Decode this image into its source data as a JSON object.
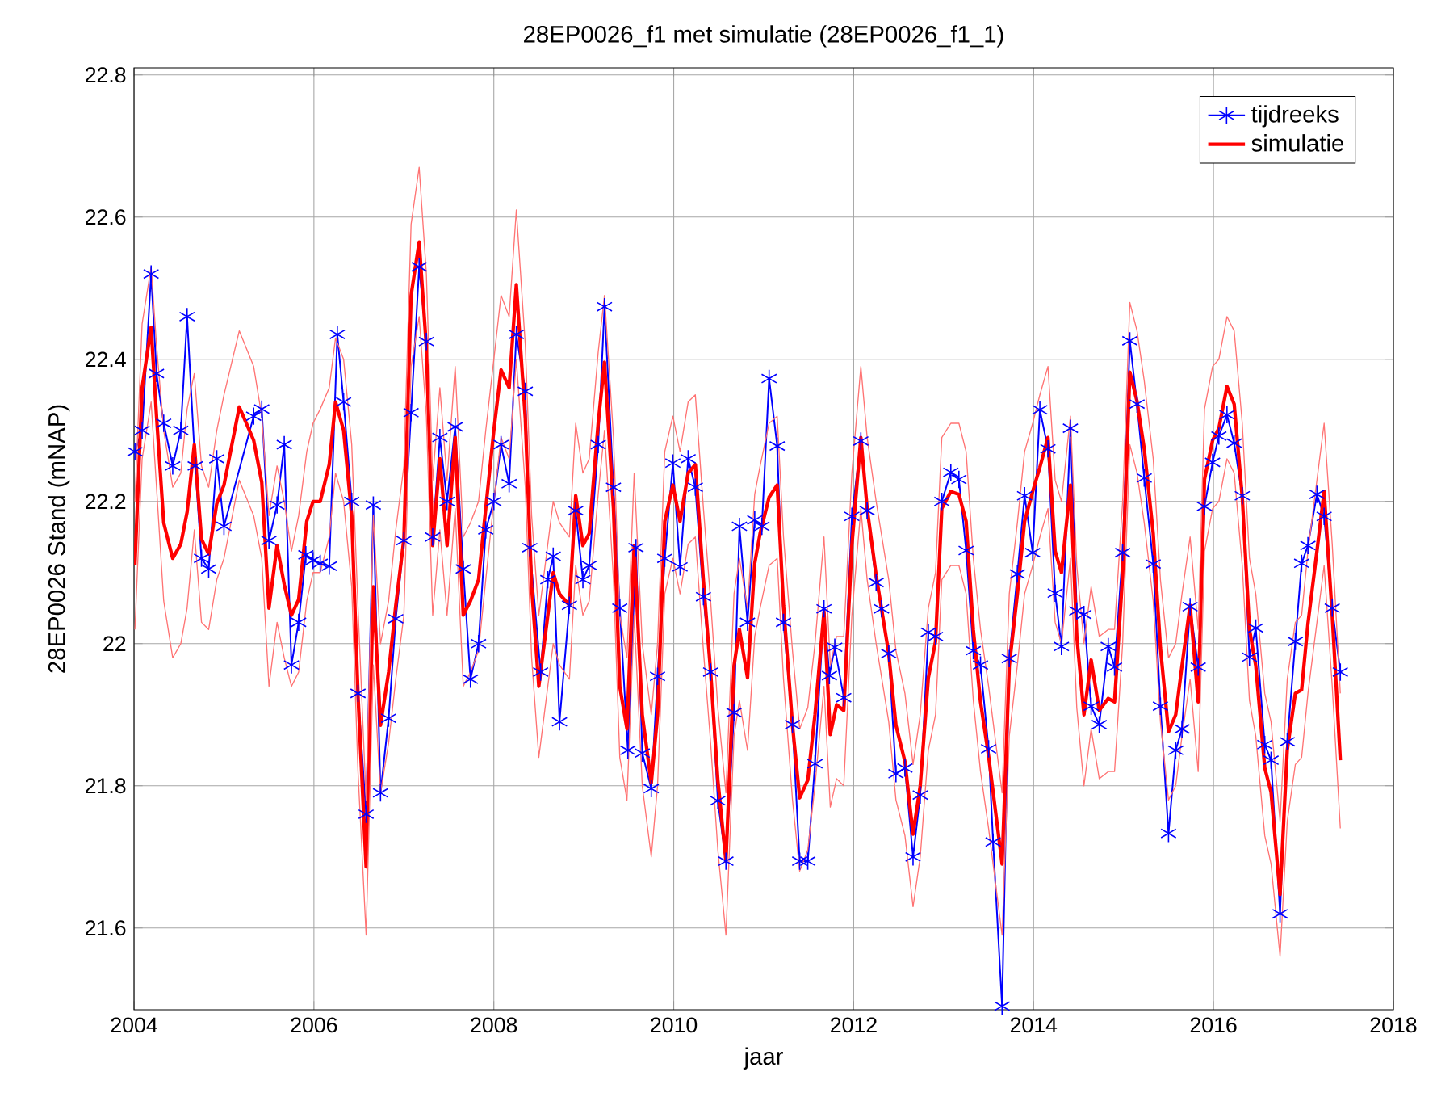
{
  "chart_data": {
    "type": "line",
    "title": "28EP0026_f1 met simulatie (28EP0026_f1_1)",
    "xlabel": "jaar",
    "ylabel": "28EP0026 Stand (mNAP)",
    "xlim": [
      2004,
      2018
    ],
    "ylim": [
      21.485,
      22.81
    ],
    "xticks": [
      2004,
      2006,
      2008,
      2010,
      2012,
      2014,
      2016,
      2018
    ],
    "yticks": [
      21.6,
      21.8,
      22,
      22.2,
      22.4,
      22.6,
      22.8
    ],
    "grid": true,
    "legend": "top right",
    "x": [
      2004.01,
      2004.09,
      2004.19,
      2004.25,
      2004.33,
      2004.43,
      2004.52,
      2004.59,
      2004.67,
      2004.75,
      2004.83,
      2004.92,
      2005.0,
      2005.17,
      2005.33,
      2005.42,
      2005.5,
      2005.59,
      2005.67,
      2005.75,
      2005.83,
      2005.92,
      2005.99,
      2006.07,
      2006.17,
      2006.24,
      2006.33,
      2006.42,
      2006.49,
      2006.58,
      2006.66,
      2006.74,
      2006.83,
      2006.91,
      2007.0,
      2007.08,
      2007.17,
      2007.25,
      2007.32,
      2007.4,
      2007.48,
      2007.57,
      2007.66,
      2007.74,
      2007.83,
      2007.91,
      2008.0,
      2008.08,
      2008.17,
      2008.25,
      2008.35,
      2008.42,
      2008.5,
      2008.59,
      2008.66,
      2008.73,
      2008.84,
      2008.91,
      2008.99,
      2009.06,
      2009.16,
      2009.23,
      2009.33,
      2009.4,
      2009.48,
      2009.56,
      2009.65,
      2009.75,
      2009.82,
      2009.9,
      2009.99,
      2010.07,
      2010.16,
      2010.24,
      2010.33,
      2010.41,
      2010.49,
      2010.58,
      2010.67,
      2010.73,
      2010.82,
      2010.9,
      2010.96,
      2011.06,
      2011.15,
      2011.22,
      2011.32,
      2011.4,
      2011.49,
      2011.57,
      2011.67,
      2011.74,
      2011.81,
      2011.89,
      2011.98,
      2012.08,
      2012.15,
      2012.25,
      2012.39,
      2012.47,
      2012.57,
      2012.66,
      2012.74,
      2012.83,
      2012.91,
      2012.98,
      2013.08,
      2013.17,
      2013.25,
      2013.33,
      2013.41,
      2013.5,
      2013.65,
      2013.73,
      2013.82,
      2013.9,
      2013.99,
      2014.07,
      2014.16,
      2014.24,
      2014.31,
      2014.41,
      2014.48,
      2014.56,
      2014.64,
      2014.73,
      2014.83,
      2014.9,
      2014.99,
      2015.07,
      2015.15,
      2015.23,
      2015.33,
      2015.41,
      2015.5,
      2015.58,
      2015.65,
      2015.74,
      2015.83,
      2015.9,
      2015.99,
      2016.06,
      2016.15,
      2016.23,
      2016.32,
      2016.4,
      2016.47,
      2016.57,
      2016.64,
      2016.74,
      2016.82,
      2016.91,
      2016.98,
      2017.05,
      2017.15,
      2017.23,
      2017.32,
      2017.41
    ],
    "series": [
      {
        "name": "tijdreeks",
        "color": "#0000ff",
        "marker": "cross",
        "line_style": "solid",
        "x": [
          2004.01,
          2004.09,
          2004.19,
          2004.25,
          2004.33,
          2004.43,
          2004.52,
          2004.59,
          2004.68,
          2004.75,
          2004.83,
          2004.92,
          2005.0,
          2005.33,
          2005.42,
          2005.5,
          2005.59,
          2005.67,
          2005.75,
          2005.83,
          2005.91,
          2005.99,
          2006.07,
          2006.17,
          2006.26,
          2006.33,
          2006.42,
          2006.49,
          2006.58,
          2006.66,
          2006.74,
          2006.83,
          2006.91,
          2007.0,
          2007.08,
          2007.17,
          2007.25,
          2007.32,
          2007.4,
          2007.48,
          2007.57,
          2007.66,
          2007.74,
          2007.83,
          2007.91,
          2008.0,
          2008.08,
          2008.17,
          2008.25,
          2008.35,
          2008.4,
          2008.52,
          2008.6,
          2008.66,
          2008.73,
          2008.84,
          2008.91,
          2008.99,
          2009.06,
          2009.16,
          2009.23,
          2009.33,
          2009.4,
          2009.49,
          2009.58,
          2009.65,
          2009.75,
          2009.82,
          2009.9,
          2009.99,
          2010.07,
          2010.16,
          2010.24,
          2010.33,
          2010.41,
          2010.49,
          2010.58,
          2010.67,
          2010.73,
          2010.82,
          2010.9,
          2010.98,
          2011.06,
          2011.15,
          2011.22,
          2011.32,
          2011.4,
          2011.49,
          2011.57,
          2011.67,
          2011.73,
          2011.79,
          2011.89,
          2011.98,
          2012.08,
          2012.15,
          2012.25,
          2012.31,
          2012.39,
          2012.47,
          2012.57,
          2012.66,
          2012.74,
          2012.83,
          2012.91,
          2012.98,
          2013.08,
          2013.17,
          2013.25,
          2013.33,
          2013.41,
          2013.5,
          2013.55,
          2013.65,
          2013.73,
          2013.82,
          2013.9,
          2013.99,
          2014.07,
          2014.16,
          2014.24,
          2014.31,
          2014.41,
          2014.48,
          2014.56,
          2014.64,
          2014.73,
          2014.83,
          2014.9,
          2014.99,
          2015.07,
          2015.15,
          2015.23,
          2015.33,
          2015.41,
          2015.5,
          2015.58,
          2015.65,
          2015.74,
          2015.83,
          2015.9,
          2015.99,
          2016.06,
          2016.15,
          2016.23,
          2016.32,
          2016.4,
          2016.47,
          2016.57,
          2016.64,
          2016.74,
          2016.82,
          2016.91,
          2016.98,
          2017.05,
          2017.15,
          2017.23,
          2017.32,
          2017.41
        ],
        "values": [
          22.27,
          22.3,
          22.52,
          22.38,
          22.31,
          22.25,
          22.3,
          22.46,
          22.25,
          22.12,
          22.105,
          22.26,
          22.165,
          22.32,
          22.33,
          22.145,
          22.195,
          22.28,
          21.97,
          22.03,
          22.125,
          22.117,
          22.113,
          22.109,
          22.435,
          22.34,
          22.2,
          21.93,
          21.76,
          22.195,
          21.79,
          21.895,
          22.035,
          22.145,
          22.325,
          22.53,
          22.425,
          22.15,
          22.29,
          22.2,
          22.305,
          22.105,
          21.95,
          22.0,
          22.16,
          22.2,
          22.28,
          22.225,
          22.435,
          22.355,
          22.135,
          21.96,
          22.09,
          22.123,
          21.89,
          22.054,
          22.187,
          22.09,
          22.11,
          22.28,
          22.474,
          22.22,
          22.05,
          21.85,
          22.135,
          21.846,
          21.796,
          21.954,
          22.12,
          22.254,
          22.108,
          22.26,
          22.22,
          22.066,
          21.96,
          21.779,
          21.694,
          21.903,
          22.165,
          22.03,
          22.174,
          22.165,
          22.373,
          22.278,
          22.03,
          21.886,
          21.694,
          21.694,
          21.831,
          22.049,
          21.955,
          21.995,
          21.924,
          22.179,
          22.285,
          22.187,
          22.086,
          22.049,
          21.986,
          21.817,
          21.825,
          21.7,
          21.787,
          22.016,
          22.01,
          22.2,
          22.241,
          22.231,
          22.131,
          21.99,
          21.97,
          21.852,
          21.721,
          21.49,
          21.979,
          22.098,
          22.208,
          22.128,
          22.329,
          22.274,
          22.071,
          21.996,
          22.303,
          22.046,
          22.041,
          21.912,
          21.886,
          21.996,
          21.967,
          22.128,
          22.426,
          22.337,
          22.233,
          22.112,
          21.912,
          21.733,
          21.85,
          21.88,
          22.052,
          21.967,
          22.193,
          22.255,
          22.292,
          22.322,
          22.282,
          22.208,
          21.981,
          22.022,
          21.858,
          21.836,
          21.62,
          21.862,
          22.003,
          22.113,
          22.138,
          22.21,
          22.179,
          22.05,
          21.96
        ]
      },
      {
        "name": "simulatie",
        "color": "#ff0000",
        "marker": "none",
        "line_style": "solid",
        "values": [
          22.11,
          22.36,
          22.445,
          22.32,
          22.17,
          22.12,
          22.14,
          22.185,
          22.28,
          22.147,
          22.126,
          22.197,
          22.223,
          22.333,
          22.286,
          22.227,
          22.05,
          22.138,
          22.083,
          22.04,
          22.062,
          22.172,
          22.2,
          22.2,
          22.252,
          22.34,
          22.3,
          22.18,
          21.927,
          21.686,
          22.08,
          21.885,
          21.96,
          22.054,
          22.147,
          22.49,
          22.565,
          22.417,
          22.138,
          22.26,
          22.138,
          22.29,
          22.04,
          22.06,
          22.09,
          22.19,
          22.3,
          22.385,
          22.36,
          22.505,
          22.316,
          22.08,
          21.94,
          22.03,
          22.1,
          22.07,
          22.054,
          22.208,
          22.138,
          22.155,
          22.31,
          22.396,
          22.19,
          21.94,
          21.88,
          22.138,
          21.9,
          21.804,
          21.9,
          22.172,
          22.223,
          22.172,
          22.24,
          22.252,
          22.088,
          21.96,
          21.808,
          21.694,
          21.969,
          22.02,
          21.952,
          22.113,
          22.155,
          22.206,
          22.223,
          22.054,
          21.885,
          21.783,
          21.808,
          21.9,
          22.045,
          21.872,
          21.914,
          21.906,
          22.138,
          22.29,
          22.19,
          22.096,
          21.986,
          21.885,
          21.834,
          21.732,
          21.8,
          21.952,
          22.003,
          22.19,
          22.214,
          22.21,
          22.172,
          22.02,
          21.918,
          21.842,
          21.69,
          21.969,
          22.07,
          22.172,
          22.214,
          22.248,
          22.29,
          22.13,
          22.1,
          22.223,
          22.011,
          21.9,
          21.977,
          21.906,
          21.923,
          21.918,
          22.096,
          22.382,
          22.341,
          22.274,
          22.155,
          21.994,
          21.876,
          21.9,
          21.969,
          22.054,
          21.918,
          22.231,
          22.286,
          22.303,
          22.362,
          22.337,
          22.206,
          22.02,
          21.969,
          21.825,
          21.791,
          21.647,
          21.85,
          21.93,
          21.935,
          22.028,
          22.13,
          22.214,
          22.04,
          21.836
        ]
      },
      {
        "color": "#ff7373",
        "marker": "none",
        "line_style": "solid",
        "values": [
          22.02,
          22.26,
          22.34,
          22.22,
          22.06,
          21.98,
          22.0,
          22.05,
          22.16,
          22.03,
          22.02,
          22.09,
          22.12,
          22.23,
          22.18,
          22.12,
          21.94,
          22.03,
          21.98,
          21.94,
          21.96,
          22.06,
          22.1,
          22.1,
          22.15,
          22.24,
          22.2,
          22.08,
          21.82,
          21.59,
          21.97,
          21.79,
          21.86,
          21.95,
          22.04,
          22.39,
          22.46,
          22.32,
          22.04,
          22.16,
          22.04,
          22.19,
          21.94,
          21.96,
          21.99,
          22.09,
          22.2,
          22.29,
          22.26,
          22.4,
          22.22,
          21.98,
          21.84,
          21.93,
          22.0,
          21.97,
          21.95,
          22.11,
          22.04,
          22.06,
          22.21,
          22.3,
          22.09,
          21.84,
          21.78,
          22.04,
          21.8,
          21.7,
          21.8,
          22.07,
          22.12,
          22.07,
          22.14,
          22.15,
          21.99,
          21.86,
          21.71,
          21.59,
          21.87,
          21.92,
          21.85,
          22.01,
          22.05,
          22.11,
          22.12,
          21.95,
          21.78,
          21.68,
          21.71,
          21.8,
          21.94,
          21.77,
          21.81,
          21.8,
          22.04,
          22.19,
          22.09,
          22.0,
          21.89,
          21.78,
          21.73,
          21.63,
          21.7,
          21.85,
          21.9,
          22.09,
          22.11,
          22.11,
          22.07,
          21.92,
          21.82,
          21.74,
          21.59,
          21.87,
          21.97,
          22.07,
          22.11,
          22.15,
          22.19,
          22.03,
          22.0,
          22.12,
          21.91,
          21.8,
          21.88,
          21.81,
          21.82,
          21.82,
          22.0,
          22.28,
          22.24,
          22.17,
          22.06,
          21.89,
          21.78,
          21.8,
          21.87,
          21.95,
          21.82,
          22.13,
          22.19,
          22.2,
          22.26,
          22.24,
          22.11,
          21.92,
          21.87,
          21.73,
          21.69,
          21.56,
          21.75,
          21.83,
          21.84,
          21.93,
          22.03,
          22.11,
          21.94,
          21.74
        ]
      },
      {
        "color": "#ff7373",
        "marker": "none",
        "line_style": "solid",
        "values": [
          22.2,
          22.45,
          22.53,
          22.42,
          22.3,
          22.22,
          22.24,
          22.33,
          22.38,
          22.25,
          22.22,
          22.3,
          22.35,
          22.44,
          22.39,
          22.32,
          22.18,
          22.25,
          22.2,
          22.13,
          22.18,
          22.27,
          22.31,
          22.33,
          22.36,
          22.43,
          22.4,
          22.28,
          22.05,
          21.78,
          22.18,
          22.0,
          22.06,
          22.16,
          22.25,
          22.59,
          22.67,
          22.52,
          22.23,
          22.36,
          22.23,
          22.39,
          22.15,
          22.17,
          22.2,
          22.3,
          22.4,
          22.49,
          22.46,
          22.61,
          22.42,
          22.18,
          22.04,
          22.13,
          22.2,
          22.17,
          22.15,
          22.31,
          22.24,
          22.26,
          22.41,
          22.49,
          22.29,
          22.04,
          21.98,
          22.24,
          22.0,
          21.9,
          22.0,
          22.27,
          22.32,
          22.27,
          22.34,
          22.35,
          22.19,
          22.06,
          21.91,
          21.79,
          22.07,
          22.12,
          22.05,
          22.21,
          22.25,
          22.31,
          22.32,
          22.15,
          21.99,
          21.88,
          21.91,
          22.0,
          22.15,
          21.97,
          22.01,
          22.01,
          22.24,
          22.39,
          22.29,
          22.2,
          22.09,
          21.99,
          21.93,
          21.83,
          21.9,
          22.05,
          22.1,
          22.29,
          22.31,
          22.31,
          22.27,
          22.12,
          22.02,
          21.94,
          21.79,
          22.07,
          22.17,
          22.27,
          22.31,
          22.35,
          22.39,
          22.23,
          22.2,
          22.32,
          22.11,
          22.0,
          22.08,
          22.01,
          22.02,
          22.02,
          22.2,
          22.48,
          22.44,
          22.37,
          22.26,
          22.09,
          21.98,
          22.0,
          22.07,
          22.15,
          22.02,
          22.33,
          22.39,
          22.4,
          22.46,
          22.44,
          22.31,
          22.12,
          22.07,
          21.93,
          21.89,
          21.75,
          21.95,
          22.03,
          22.04,
          22.13,
          22.23,
          22.31,
          22.14,
          21.93
        ]
      }
    ]
  }
}
